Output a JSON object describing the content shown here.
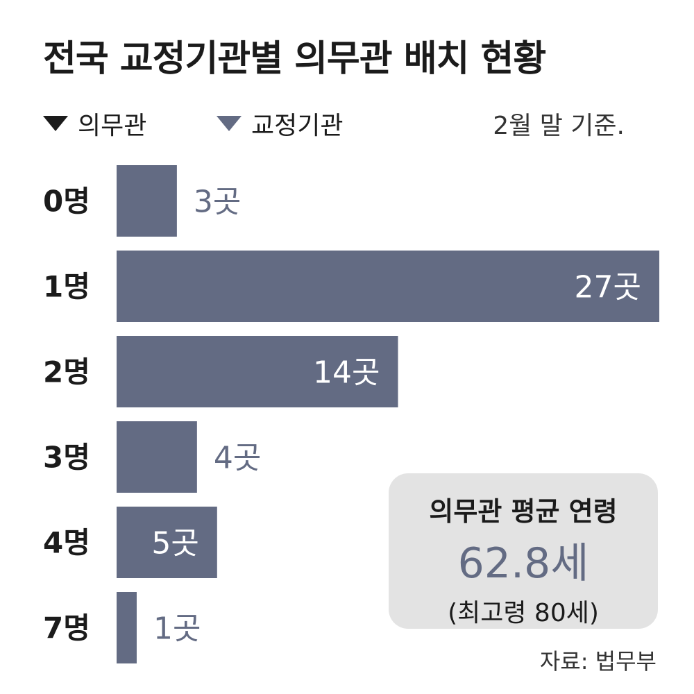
{
  "title": "전국 교정기관별 의무관 배치 현황",
  "legend": {
    "inmate_label": "의무관",
    "institution_label": "교정기관"
  },
  "basis_note": "2월 말 기준.",
  "colors": {
    "bar": "#636b83",
    "label_inside": "#ffffff",
    "label_outside": "#636b83",
    "summary_bg": "#e3e3e3"
  },
  "chart_data": {
    "type": "bar",
    "orientation": "horizontal",
    "categories": [
      "0명",
      "1명",
      "2명",
      "3명",
      "4명",
      "7명"
    ],
    "values": [
      3,
      27,
      14,
      4,
      5,
      1
    ],
    "value_labels": [
      "3곳",
      "27곳",
      "14곳",
      "4곳",
      "5곳",
      "1곳"
    ],
    "legend": [
      "의무관",
      "교정기관"
    ],
    "xlim": [
      0,
      27
    ],
    "grid": false
  },
  "summary": {
    "title": "의무관 평균 연령",
    "value": "62.8세",
    "note": "(최고령 80세)"
  },
  "source": "자료: 법무부"
}
